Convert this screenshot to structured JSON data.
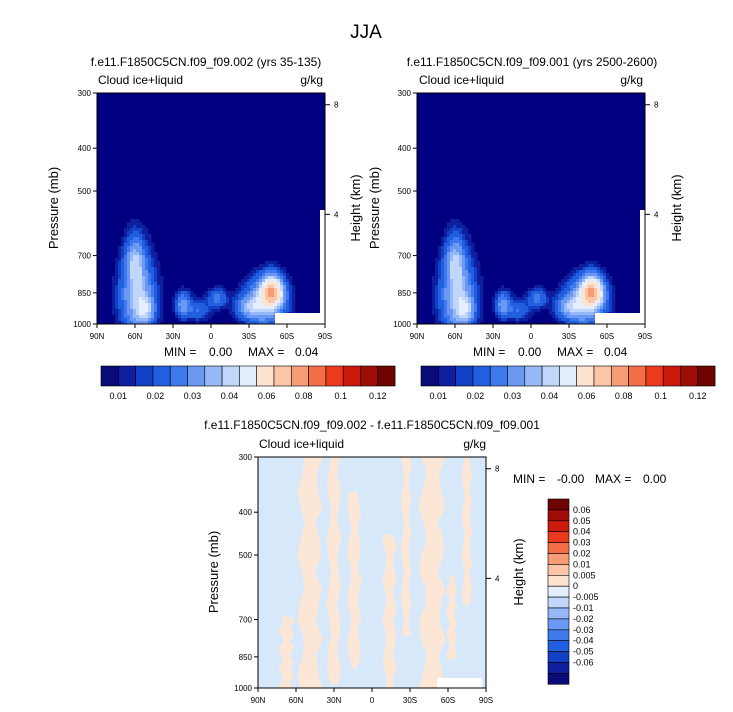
{
  "figure": {
    "title": "JJA",
    "variable": "Cloud ice+liquid",
    "units": "g/kg"
  },
  "colors": {
    "background": "#000080",
    "white_mask": "#ffffff",
    "diff_negative": "#d7e8fa",
    "diff_positive": "#fce6d6"
  },
  "chart_data": [
    {
      "id": "panel-1",
      "type": "heatmap",
      "title": "f.e11.F1850C5CN.f09_f09.002 (yrs 35-135)",
      "left_label": "Cloud ice+liquid",
      "right_label": "g/kg",
      "ylabel": "Pressure (mb)",
      "y2label": "Height (km)",
      "x_ticks": [
        "90N",
        "60N",
        "30N",
        "0",
        "30S",
        "60S",
        "90S"
      ],
      "y_ticks": [
        "300",
        "400",
        "500",
        "700",
        "850",
        "1000"
      ],
      "y2_ticks": [
        "8",
        "4"
      ],
      "min_label": "MIN =",
      "min_value": "0.00",
      "max_label": "MAX =",
      "max_value": "0.04",
      "zero_color": "#000080",
      "blobs": [
        {
          "lat": 58,
          "p": 870,
          "sx": 9,
          "sp": 115,
          "v": 0.012
        },
        {
          "lat": 60,
          "p": 720,
          "sx": 5,
          "sp": 60,
          "v": 0.009
        },
        {
          "lat": 52,
          "p": 930,
          "sx": 5,
          "sp": 50,
          "v": 0.008
        },
        {
          "lat": 22,
          "p": 905,
          "sx": 4,
          "sp": 40,
          "v": 0.009
        },
        {
          "lat": -48,
          "p": 845,
          "sx": 6,
          "sp": 45,
          "v": 0.025
        },
        {
          "lat": -42,
          "p": 900,
          "sx": 11,
          "sp": 70,
          "v": 0.012
        },
        {
          "lat": -30,
          "p": 915,
          "sx": 7,
          "sp": 35,
          "v": 0.007
        },
        {
          "lat": -5,
          "p": 875,
          "sx": 5,
          "sp": 30,
          "v": 0.006
        },
        {
          "lat": 10,
          "p": 930,
          "sx": 6,
          "sp": 35,
          "v": 0.005
        }
      ]
    },
    {
      "id": "panel-2",
      "type": "heatmap",
      "title": "f.e11.F1850C5CN.f09_f09.001 (yrs 2500-2600)",
      "left_label": "Cloud ice+liquid",
      "right_label": "g/kg",
      "ylabel": "Pressure (mb)",
      "y2label": "Height (km)",
      "x_ticks": [
        "90N",
        "60N",
        "30N",
        "0",
        "30S",
        "60S",
        "90S"
      ],
      "y_ticks": [
        "300",
        "400",
        "500",
        "700",
        "850",
        "1000"
      ],
      "y2_ticks": [
        "8",
        "4"
      ],
      "min_label": "MIN =",
      "min_value": "0.00",
      "max_label": "MAX =",
      "max_value": "0.04",
      "zero_color": "#000080",
      "blobs": [
        {
          "lat": 58,
          "p": 870,
          "sx": 9,
          "sp": 115,
          "v": 0.012
        },
        {
          "lat": 60,
          "p": 720,
          "sx": 5,
          "sp": 60,
          "v": 0.009
        },
        {
          "lat": 52,
          "p": 930,
          "sx": 5,
          "sp": 50,
          "v": 0.008
        },
        {
          "lat": 22,
          "p": 905,
          "sx": 4,
          "sp": 40,
          "v": 0.009
        },
        {
          "lat": -48,
          "p": 845,
          "sx": 6,
          "sp": 45,
          "v": 0.025
        },
        {
          "lat": -42,
          "p": 900,
          "sx": 11,
          "sp": 70,
          "v": 0.012
        },
        {
          "lat": -30,
          "p": 915,
          "sx": 7,
          "sp": 35,
          "v": 0.007
        },
        {
          "lat": -5,
          "p": 875,
          "sx": 5,
          "sp": 30,
          "v": 0.006
        },
        {
          "lat": 10,
          "p": 930,
          "sx": 6,
          "sp": 35,
          "v": 0.005
        }
      ]
    },
    {
      "id": "panel-diff",
      "type": "heatmap",
      "title": "f.e11.F1850C5CN.f09_f09.002 - f.e11.F1850C5CN.f09_f09.001",
      "left_label": "Cloud ice+liquid",
      "right_label": "g/kg",
      "ylabel": "Pressure (mb)",
      "y2label": "Height (km)",
      "x_ticks": [
        "90N",
        "60N",
        "30N",
        "0",
        "30S",
        "60S",
        "90S"
      ],
      "y_ticks": [
        "300",
        "400",
        "500",
        "700",
        "850",
        "1000"
      ],
      "y2_ticks": [
        "8",
        "4"
      ],
      "min_label": "MIN =",
      "min_value": "-0.00",
      "max_label": "MAX =",
      "max_value": "0.00",
      "positive_bands": [
        {
          "lat_a": 72,
          "lat_b": 63,
          "p_top": 690,
          "p_bot": 1000
        },
        {
          "lat_a": 56,
          "lat_b": 42,
          "p_top": 300,
          "p_bot": 1000
        },
        {
          "lat_a": 34,
          "lat_b": 26,
          "p_top": 300,
          "p_bot": 980
        },
        {
          "lat_a": 18,
          "lat_b": 10,
          "p_top": 360,
          "p_bot": 900
        },
        {
          "lat_a": -10,
          "lat_b": -18,
          "p_top": 450,
          "p_bot": 1000
        },
        {
          "lat_a": -24,
          "lat_b": -30,
          "p_top": 300,
          "p_bot": 760
        },
        {
          "lat_a": -40,
          "lat_b": -55,
          "p_top": 300,
          "p_bot": 1000
        },
        {
          "lat_a": -60,
          "lat_b": -66,
          "p_top": 560,
          "p_bot": 860
        },
        {
          "lat_a": -72,
          "lat_b": -78,
          "p_top": 300,
          "p_bot": 650
        }
      ]
    }
  ],
  "colorbar_main": {
    "orientation": "horizontal",
    "colors": [
      "#0a0a78",
      "#0d1f9e",
      "#1240c6",
      "#215ee0",
      "#3f79ee",
      "#6a98f2",
      "#97b8f7",
      "#c0d6fa",
      "#e4eefd",
      "#fde4d1",
      "#fbc5a6",
      "#f89c78",
      "#f46e48",
      "#ec3a1d",
      "#cc1a0d",
      "#9e0c06",
      "#6e0402"
    ],
    "tick_labels": [
      "0.01",
      "0.02",
      "0.03",
      "0.04",
      "0.06",
      "0.08",
      "0.1",
      "0.12"
    ],
    "levels": [
      0.001,
      0.002,
      0.003,
      0.005,
      0.007,
      0.01,
      0.012,
      0.015,
      0.02,
      0.025,
      0.03,
      0.04,
      0.05,
      0.06,
      0.08,
      0.1
    ]
  },
  "colorbar_diff": {
    "orientation": "vertical",
    "colors": [
      "#6e0402",
      "#a00c06",
      "#cc1a0d",
      "#ec3a1d",
      "#f46e48",
      "#f89c78",
      "#fbc5a6",
      "#fde4d1",
      "#e4eefd",
      "#c0d6fa",
      "#97b8f7",
      "#6a98f2",
      "#3f79ee",
      "#215ee0",
      "#1240c6",
      "#0d1f9e",
      "#0a0a78"
    ],
    "tick_labels": [
      "0.06",
      "0.05",
      "0.04",
      "0.03",
      "0.02",
      "0.01",
      "0.005",
      "0",
      "-0.005",
      "-0.01",
      "-0.02",
      "-0.03",
      "-0.04",
      "-0.05",
      "-0.06"
    ]
  }
}
